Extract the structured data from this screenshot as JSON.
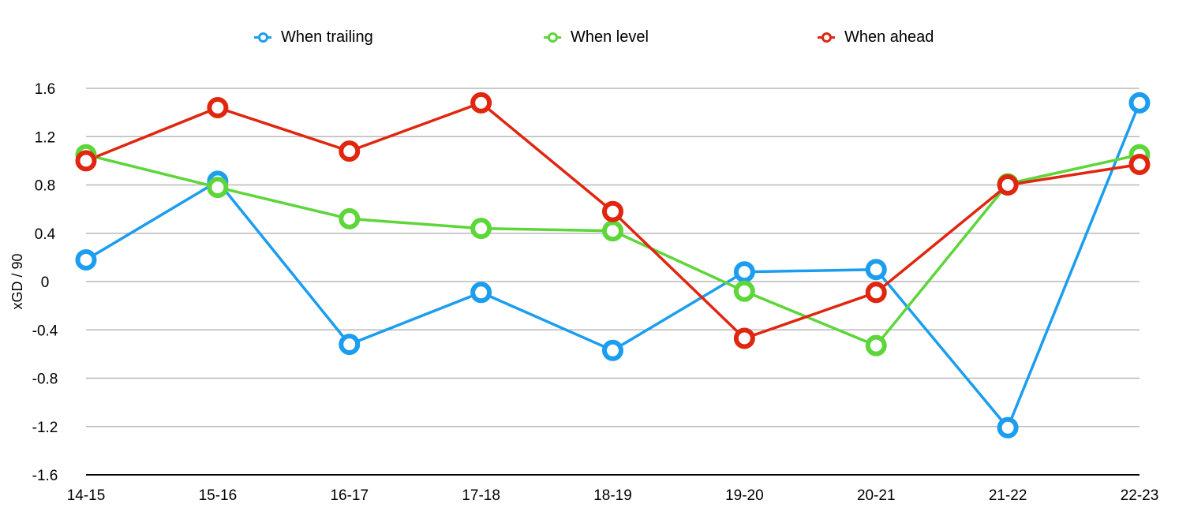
{
  "chart_data": {
    "type": "line",
    "title": "",
    "xlabel": "",
    "ylabel": "xGD / 90",
    "categories": [
      "14-15",
      "15-16",
      "16-17",
      "17-18",
      "18-19",
      "19-20",
      "20-21",
      "21-22",
      "22-23"
    ],
    "yticks": [
      "1.6",
      "1.2",
      "0.8",
      "0.4",
      "0",
      "-0.4",
      "-0.8",
      "-1.2",
      "-1.6"
    ],
    "ylim": [
      -1.6,
      1.6
    ],
    "grid": true,
    "legend_position": "top",
    "series": [
      {
        "name": "When trailing",
        "color": "#1b9df0",
        "values": [
          0.18,
          0.83,
          -0.52,
          -0.09,
          -0.57,
          0.08,
          0.1,
          -1.21,
          1.48
        ]
      },
      {
        "name": "When level",
        "color": "#5dd63a",
        "values": [
          1.05,
          0.78,
          0.52,
          0.44,
          0.42,
          -0.08,
          -0.53,
          0.81,
          1.05
        ]
      },
      {
        "name": "When ahead",
        "color": "#e0260f",
        "values": [
          1.0,
          1.44,
          1.08,
          1.48,
          0.58,
          -0.47,
          -0.09,
          0.8,
          0.97
        ]
      }
    ]
  }
}
